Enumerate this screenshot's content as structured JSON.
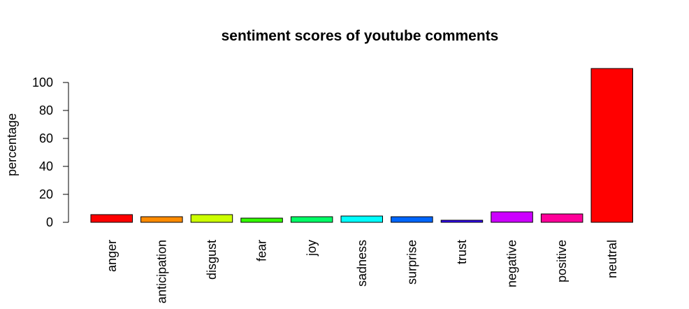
{
  "chart_data": {
    "type": "bar",
    "title": "sentiment scores of youtube comments",
    "xlabel": "",
    "ylabel": "percentage",
    "ylim": [
      0,
      110
    ],
    "yticks": [
      0,
      20,
      40,
      60,
      80,
      100
    ],
    "categories": [
      "anger",
      "anticipation",
      "disgust",
      "fear",
      "joy",
      "sadness",
      "surprise",
      "trust",
      "negative",
      "positive",
      "neutral"
    ],
    "values": [
      5.5,
      4,
      5.5,
      3,
      4,
      4.5,
      4,
      1.5,
      7.5,
      6,
      110
    ],
    "colors": [
      "#FF0000",
      "#FF8B00",
      "#E8FF00",
      "#5DFF00",
      "#00FF2E",
      "#00FFB9",
      "#00B9FF",
      "#002EFF",
      "#5D00FF",
      "#E800FF",
      "#FF008B",
      "#FF0000"
    ],
    "bar_colors": [
      "#FF0000",
      "#FF8B00",
      "#CCFF00",
      "#33FF00",
      "#00FF66",
      "#00FFFF",
      "#0066FF",
      "#3300FF",
      "#CC00FF",
      "#FF0099",
      "#FF0000"
    ],
    "grid": false,
    "legend": "none"
  }
}
